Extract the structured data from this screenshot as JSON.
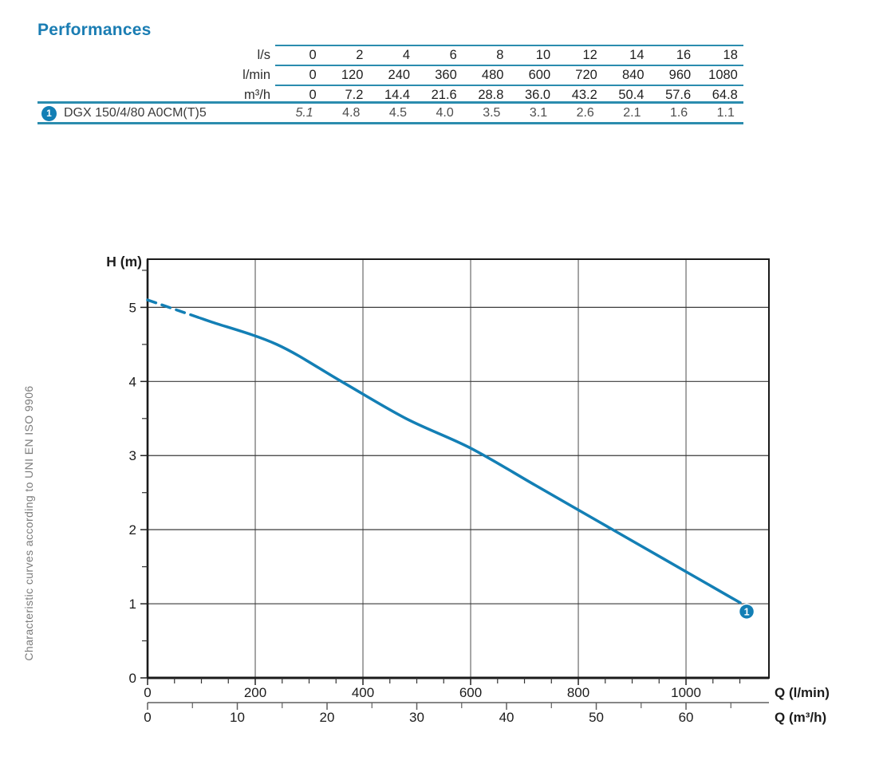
{
  "page": {
    "title": "Performances",
    "iso_note": "Characteristic curves according to UNI EN ISO 9906"
  },
  "colors": {
    "accent": "#137fb5",
    "rule_teal": "#2b8cae",
    "title_blue": "#1a7db3",
    "grid_vertical": "#6a6a6a",
    "grid_horizontal": "#3a3a3a",
    "plot_border": "#1a1a1a",
    "secondary_axis": "#5f5f5f",
    "tick_text": "#1c1c1c",
    "series_value_gray": "#4e4e4e",
    "note_gray": "#7c7c7c"
  },
  "table": {
    "unit_rows": [
      {
        "label": "l/s",
        "values": [
          "0",
          "2",
          "4",
          "6",
          "8",
          "10",
          "12",
          "14",
          "16",
          "18"
        ]
      },
      {
        "label": "l/min",
        "values": [
          "0",
          "120",
          "240",
          "360",
          "480",
          "600",
          "720",
          "840",
          "960",
          "1080"
        ]
      },
      {
        "label": "m³/h",
        "values": [
          "0",
          "7.2",
          "14.4",
          "21.6",
          "28.8",
          "36.0",
          "43.2",
          "50.4",
          "57.6",
          "64.8"
        ]
      }
    ],
    "series_row": {
      "badge": "1",
      "model": "DGX 150/4/80 A0CM(T)5",
      "values": [
        "5.1",
        "4.8",
        "4.5",
        "4.0",
        "3.5",
        "3.1",
        "2.6",
        "2.1",
        "1.6",
        "1.1"
      ],
      "first_value_italic": true
    }
  },
  "chart_data": {
    "type": "line",
    "title": "",
    "ylabel": "H (m)",
    "xlabel_primary": "Q (l/min)",
    "xlabel_secondary": "Q (m³/h)",
    "grid": true,
    "y_axis": {
      "min": 0,
      "max": 5.65,
      "major_ticks": [
        0,
        1,
        2,
        3,
        4,
        5
      ],
      "minor_step": 0.5
    },
    "x_axis_lmin": {
      "min": 0,
      "max": 1154,
      "major_ticks": [
        0,
        200,
        400,
        600,
        800,
        1000
      ],
      "minor_step": 50
    },
    "x_axis_m3h": {
      "min": 0,
      "max": 69,
      "major_ticks": [
        0,
        10,
        20,
        30,
        40,
        50,
        60
      ],
      "minor_step": 5
    },
    "series": [
      {
        "name": "DGX 150/4/80 A0CM(T)5",
        "marker": "1",
        "q_lmin": [
          0,
          120,
          240,
          360,
          480,
          600,
          720,
          840,
          960,
          1080
        ],
        "h_m": [
          5.1,
          4.8,
          4.5,
          4.0,
          3.5,
          3.1,
          2.6,
          2.1,
          1.6,
          1.1
        ],
        "dashed_until_lmin": 98
      }
    ]
  }
}
